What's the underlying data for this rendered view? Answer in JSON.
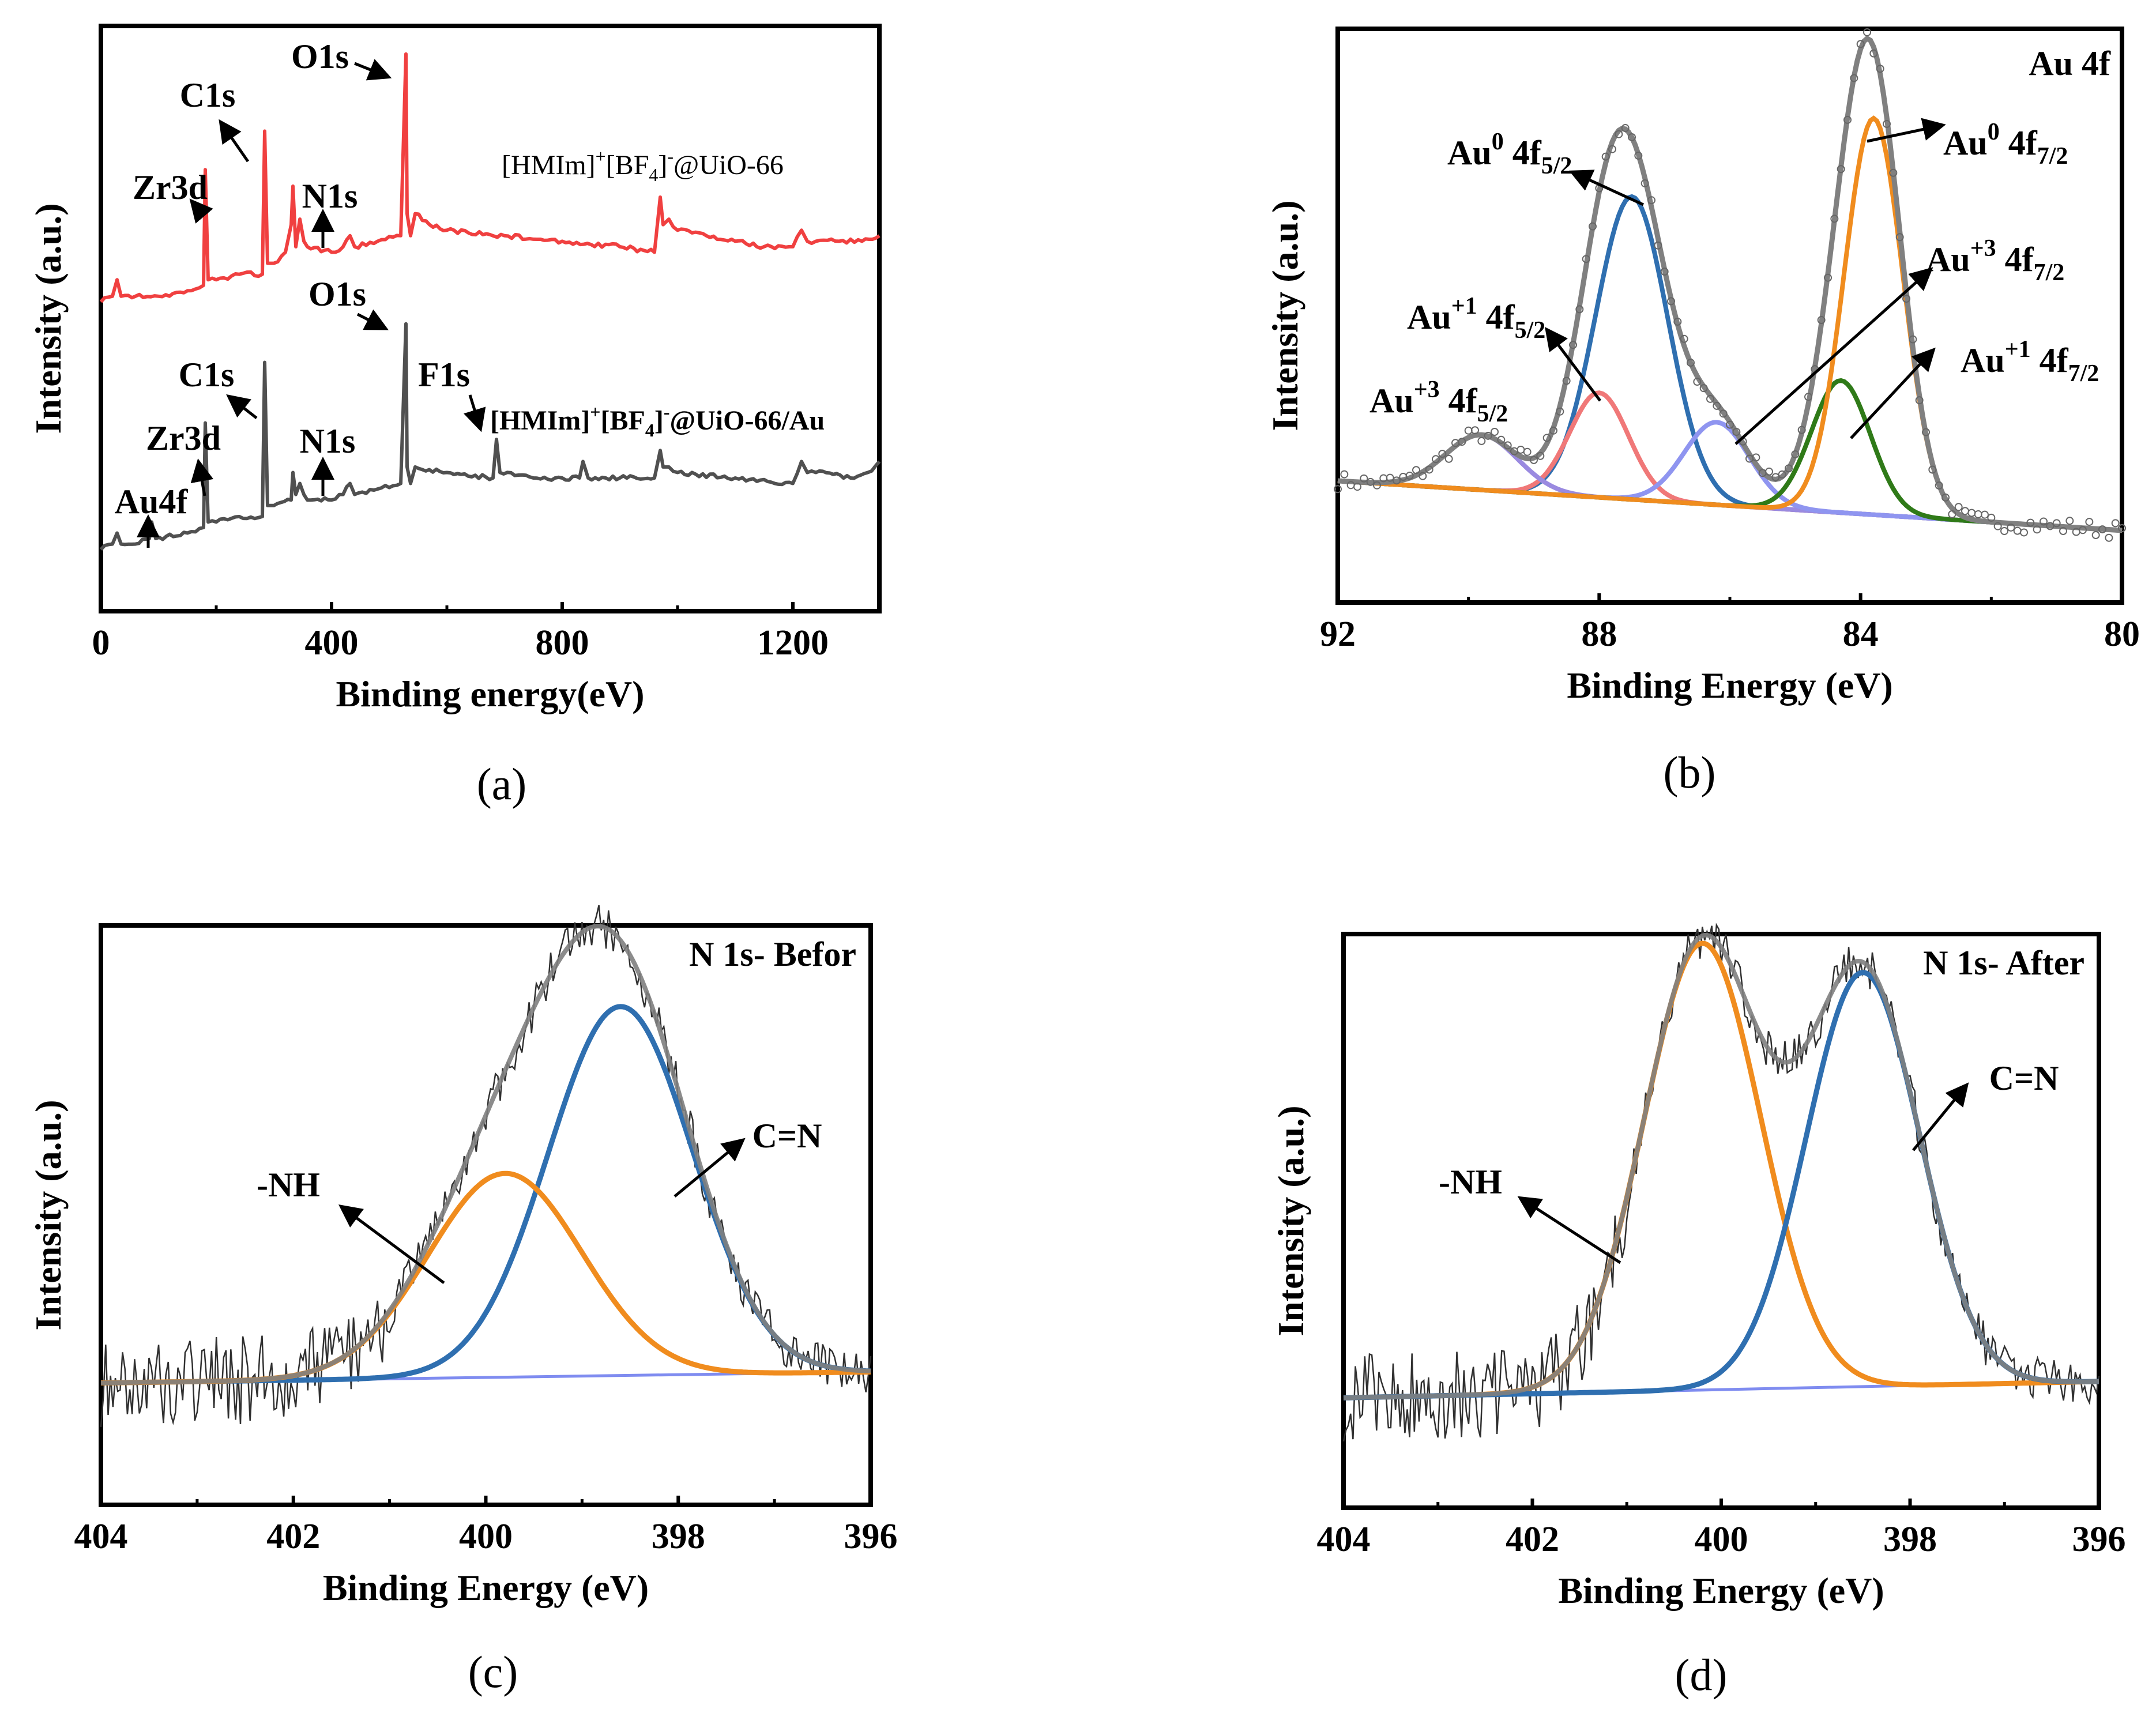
{
  "figure": {
    "captions": [
      "(a)",
      "(b)",
      "(c)",
      "(d)"
    ]
  },
  "chart_data": [
    {
      "panel": "a",
      "type": "line",
      "title": "",
      "xlabel": "Binding energy(eV)",
      "ylabel": "Intensity (a.u.)",
      "xlim": [
        0,
        1350
      ],
      "xticks": [
        0,
        400,
        800,
        1200
      ],
      "xtick_labels": [
        "0",
        "400",
        "800",
        "1200"
      ],
      "ylim": [
        0,
        100
      ],
      "series": [
        {
          "name": "[HMIm]+[BF4]-@UiO-66",
          "label_main": "[HMIm]",
          "label_sup1": "+",
          "label_mid": "[BF",
          "label_sub": "4",
          "label_end": "]",
          "label_sup2": "-",
          "label_tail": "@UiO-66",
          "color": "#f04040",
          "x": [
            0,
            20,
            28,
            35,
            60,
            100,
            150,
            178,
            181,
            186,
            200,
            240,
            280,
            284,
            289,
            300,
            320,
            330,
            333,
            338,
            345,
            352,
            358,
            400,
            420,
            432,
            440,
            480,
            520,
            529,
            531,
            537,
            545,
            570,
            600,
            700,
            800,
            900,
            960,
            970,
            975,
            985,
            1000,
            1050,
            1100,
            1150,
            1200,
            1215,
            1225,
            1240,
            1280,
            1320,
            1350
          ],
          "y": [
            52,
            53,
            56,
            53,
            53,
            53,
            54,
            55,
            76,
            56,
            56,
            57,
            57,
            83,
            59,
            59,
            61,
            66,
            73,
            62,
            67,
            63,
            62,
            61,
            62,
            64,
            62,
            63,
            64,
            97,
            68,
            64,
            68,
            66,
            65,
            64,
            63,
            62,
            61,
            71,
            66,
            67,
            65,
            64,
            63,
            62,
            62,
            65,
            63,
            63,
            63,
            63,
            64
          ]
        },
        {
          "name": "[HMIm]+[BF4]-@UiO-66/Au",
          "label_main": "[HMIm]",
          "label_sup1": "+",
          "label_mid": "[BF",
          "label_sub": "4",
          "label_end": "]",
          "label_sup2": "-",
          "label_tail": "@UiO-66/Au",
          "color": "#505050",
          "x": [
            0,
            20,
            28,
            35,
            60,
            84,
            88,
            95,
            150,
            178,
            181,
            186,
            200,
            240,
            280,
            284,
            289,
            300,
            330,
            333,
            338,
            345,
            352,
            358,
            400,
            420,
            432,
            440,
            480,
            520,
            529,
            531,
            537,
            545,
            600,
            680,
            686,
            692,
            750,
            800,
            830,
            836,
            845,
            900,
            960,
            970,
            975,
            985,
            1000,
            1100,
            1200,
            1215,
            1225,
            1240,
            1300,
            1330,
            1350
          ],
          "y": [
            7,
            8,
            10,
            8,
            8,
            9,
            12,
            9,
            10,
            11,
            30,
            12,
            12,
            13,
            13,
            41,
            15,
            15,
            16,
            21,
            17,
            19,
            17,
            16,
            16,
            17,
            19,
            17,
            18,
            19,
            48,
            22,
            19,
            22,
            21,
            20,
            27,
            21,
            20,
            20,
            20,
            23,
            20,
            20,
            20,
            25,
            22,
            22,
            21,
            20,
            19,
            23,
            21,
            21,
            20,
            21,
            23
          ]
        }
      ],
      "annotations": [
        {
          "label": "O1s"
        },
        {
          "label": "C1s"
        },
        {
          "label": "Zr3d"
        },
        {
          "label": "N1s"
        },
        {
          "label": "O1s"
        },
        {
          "label": "C1s"
        },
        {
          "label": "Zr3d"
        },
        {
          "label": "N1s"
        },
        {
          "label": "F1s"
        },
        {
          "label": "Au4f"
        }
      ]
    },
    {
      "panel": "b",
      "type": "line",
      "title": "Au 4f",
      "xlabel": "Binding Energy (eV)",
      "ylabel": "Intensity (a.u.)",
      "xlim": [
        92,
        80
      ],
      "xticks": [
        92,
        88,
        84,
        80
      ],
      "xtick_labels": [
        "92",
        "88",
        "84",
        "80"
      ],
      "ylim": [
        0,
        100
      ],
      "baseline": {
        "start": 20,
        "end": 11
      },
      "components": [
        {
          "name": "Au0 4f5/2",
          "center": 87.5,
          "height": 55,
          "sigma": 0.55,
          "color": "#2f6fb0"
        },
        {
          "name": "Au+1 4f5/2",
          "center": 88.0,
          "height": 19,
          "sigma": 0.45,
          "color": "#f07878"
        },
        {
          "name": "Au+3 4f5/2",
          "center": 89.8,
          "height": 10,
          "sigma": 0.55,
          "color": "#9a8ae0"
        },
        {
          "name": "Au+3 4f7/2",
          "center": 86.2,
          "height": 15,
          "sigma": 0.5,
          "color": "#8f95f0"
        },
        {
          "name": "Au+1 4f7/2",
          "center": 84.3,
          "height": 24,
          "sigma": 0.45,
          "color": "#2f7a18"
        },
        {
          "name": "Au0 4f7/2",
          "center": 83.8,
          "height": 72,
          "sigma": 0.45,
          "color": "#f08c1e"
        }
      ],
      "envelope_color": "#808080",
      "annotations": [
        {
          "base": "Au",
          "sup": "0",
          "mid": " 4f",
          "sub": "5/2"
        },
        {
          "base": "Au",
          "sup": "+1",
          "mid": " 4f",
          "sub": "5/2"
        },
        {
          "base": "Au",
          "sup": "+3",
          "mid": " 4f",
          "sub": "5/2"
        },
        {
          "base": "Au",
          "sup": "0",
          "mid": " 4f",
          "sub": "7/2"
        },
        {
          "base": "Au",
          "sup": "+3",
          "mid": " 4f",
          "sub": "7/2"
        },
        {
          "base": "Au",
          "sup": "+1",
          "mid": " 4f",
          "sub": "7/2"
        }
      ]
    },
    {
      "panel": "c",
      "type": "line",
      "title": "N 1s- Befor",
      "xlabel": "Binding Energy (eV)",
      "ylabel": "Intensity (a.u.)",
      "xlim": [
        404,
        396
      ],
      "xticks": [
        404,
        402,
        400,
        398,
        396
      ],
      "xtick_labels": [
        "404",
        "402",
        "400",
        "398",
        "396"
      ],
      "ylim": [
        0,
        100
      ],
      "baseline": {
        "start": 19,
        "end": 21
      },
      "components": [
        {
          "name": "C=N",
          "center": 398.6,
          "height": 67,
          "sigma": 0.75,
          "color": "#2f6fb0"
        },
        {
          "name": "-NH",
          "center": 399.8,
          "height": 37,
          "sigma": 0.8,
          "color": "#f08c1e"
        }
      ],
      "envelope_color": "#808080",
      "annotations": [
        {
          "label": "-NH"
        },
        {
          "label": "C=N"
        }
      ]
    },
    {
      "panel": "d",
      "type": "line",
      "title": "N 1s- After",
      "xlabel": "Binding Energy (eV)",
      "ylabel": "Intensity (a.u.)",
      "xlim": [
        404,
        396
      ],
      "xticks": [
        404,
        402,
        400,
        398,
        396
      ],
      "xtick_labels": [
        "404",
        "402",
        "400",
        "398",
        "396"
      ],
      "ylim": [
        0,
        100
      ],
      "baseline": {
        "start": 17,
        "end": 20
      },
      "components": [
        {
          "name": "-NH",
          "center": 400.2,
          "height": 82,
          "sigma": 0.62,
          "color": "#f08c1e"
        },
        {
          "name": "C=N",
          "center": 398.5,
          "height": 76,
          "sigma": 0.6,
          "color": "#2f6fb0"
        }
      ],
      "envelope_color": "#808080",
      "annotations": [
        {
          "label": "-NH"
        },
        {
          "label": "C=N"
        }
      ]
    }
  ]
}
